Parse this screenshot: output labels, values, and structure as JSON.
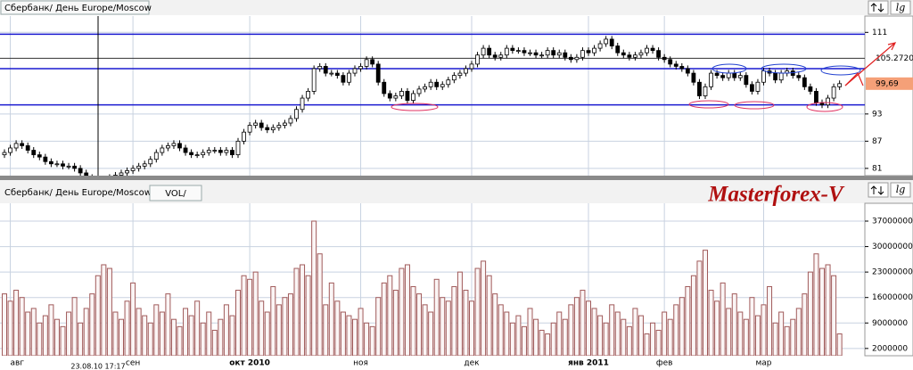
{
  "chart_data": [
    {
      "type": "candlestick",
      "title": "Сбербанк/ День Europe/Moscow",
      "scale_button": "lg",
      "up_color": "#ffffff",
      "down_color": "#000000",
      "open": [
        84,
        84.5,
        85.5,
        86.5,
        86,
        85,
        84,
        83.5,
        82.5,
        82,
        82,
        81.5,
        81.5,
        81,
        80,
        79,
        78.5,
        78,
        78.5,
        79,
        79.5,
        80,
        80.5,
        81,
        81.5,
        82,
        83,
        84.5,
        85.5,
        86,
        86.5,
        85.5,
        84.5,
        84,
        84,
        84.5,
        85,
        85,
        84.5,
        85,
        84,
        87,
        89,
        90.5,
        91,
        90,
        89.5,
        90,
        90.5,
        91,
        92,
        94,
        96.5,
        98,
        103,
        103.5,
        102,
        102,
        101.5,
        100,
        102,
        103,
        103.5,
        105,
        104,
        100,
        97.5,
        96.5,
        97,
        98,
        96,
        97.5,
        98.5,
        99,
        100,
        99,
        99.5,
        100.5,
        101.5,
        102,
        103,
        104,
        106,
        107.5,
        106,
        105.5,
        106,
        107.5,
        107,
        107,
        106.5,
        106.5,
        106,
        106,
        107,
        106,
        106.5,
        105.5,
        105,
        105.5,
        107,
        106.5,
        107.5,
        108.5,
        109.5,
        108,
        106.5,
        106,
        105.5,
        106,
        106.5,
        107.5,
        107,
        105.5,
        105,
        104,
        103.5,
        103,
        102,
        100,
        97,
        99,
        102,
        101.5,
        101,
        102,
        101,
        101.5,
        99.5,
        98,
        100,
        102.5,
        102,
        100.5,
        102,
        102.5,
        101.5,
        101,
        99,
        98,
        95.5,
        95,
        96.5,
        99
      ],
      "high": [
        85.2,
        86.2,
        87.2,
        87.2,
        86.7,
        85.7,
        84.7,
        84.2,
        83.2,
        82.7,
        82.7,
        82.2,
        82.2,
        81.7,
        80.7,
        79.7,
        79.2,
        79.2,
        79.7,
        80.2,
        80.7,
        81.2,
        81.7,
        82.2,
        82.7,
        83.7,
        85.2,
        86.2,
        86.7,
        87.2,
        87.2,
        86.2,
        85.2,
        84.7,
        85.2,
        85.7,
        85.7,
        85.7,
        85.7,
        85.7,
        87.7,
        89.7,
        91.2,
        91.7,
        91.7,
        90.7,
        90.7,
        91.2,
        91.7,
        92.7,
        94.7,
        97.2,
        98.7,
        103.7,
        104.2,
        104.2,
        102.7,
        102.7,
        102.2,
        102.7,
        103.7,
        104.2,
        105.7,
        105.7,
        104.7,
        100.7,
        98.2,
        97.7,
        98.7,
        98.7,
        98.2,
        99.2,
        99.7,
        100.7,
        100.7,
        100.2,
        101.2,
        102.2,
        102.7,
        103.7,
        104.7,
        106.7,
        108.2,
        108.2,
        106.7,
        106.7,
        108.2,
        108.2,
        107.7,
        107.7,
        107.2,
        107.2,
        106.7,
        107.7,
        107.7,
        107.2,
        107.2,
        106.2,
        106.2,
        107.7,
        107.7,
        108.2,
        109.2,
        110.2,
        110.2,
        108.7,
        107.2,
        106.7,
        106.7,
        107.2,
        108.2,
        108.2,
        107.7,
        106.2,
        105.7,
        104.7,
        104.2,
        103.7,
        102.7,
        100.7,
        99.7,
        102.7,
        102.7,
        102.2,
        102.7,
        102.7,
        102.2,
        102.2,
        100.2,
        100.7,
        103.2,
        103.2,
        102.7,
        102.7,
        103.2,
        103.2,
        102.2,
        101.7,
        99.7,
        98.7,
        96.2,
        97.2,
        99.7,
        100.4
      ],
      "low": [
        83.3,
        83.8,
        84.8,
        85.3,
        84.3,
        83.3,
        82.8,
        81.8,
        81.3,
        81.3,
        80.8,
        80.8,
        80.3,
        79.3,
        78.3,
        77.8,
        77.3,
        77.3,
        77.8,
        78.3,
        78.8,
        79.3,
        79.8,
        80.3,
        80.8,
        81.3,
        82.3,
        83.8,
        84.8,
        85.3,
        84.8,
        83.8,
        83.3,
        83.3,
        83.3,
        83.8,
        84.3,
        83.8,
        83.8,
        83.3,
        83.3,
        86.3,
        88.3,
        89.8,
        89.3,
        88.8,
        88.8,
        89.3,
        89.8,
        90.3,
        91.3,
        93.3,
        95.8,
        97.3,
        102.3,
        101.3,
        101.3,
        100.8,
        99.3,
        99.3,
        101.3,
        102.3,
        102.8,
        103.3,
        99.3,
        96.8,
        95.8,
        95.8,
        96.3,
        95.3,
        95.3,
        96.8,
        97.8,
        98.3,
        98.3,
        98.3,
        98.8,
        99.8,
        100.8,
        101.3,
        102.3,
        103.3,
        105.3,
        105.3,
        104.8,
        104.8,
        105.3,
        106.3,
        106.3,
        105.8,
        105.8,
        105.3,
        105.3,
        105.3,
        105.3,
        105.3,
        104.8,
        104.3,
        104.3,
        104.8,
        105.8,
        105.8,
        106.8,
        107.8,
        107.3,
        105.8,
        105.3,
        104.8,
        104.8,
        105.3,
        105.8,
        106.3,
        104.8,
        104.3,
        103.3,
        102.8,
        102.3,
        101.3,
        99.3,
        96.3,
        96.3,
        98.3,
        100.8,
        100.3,
        100.3,
        100.3,
        100.3,
        98.8,
        97.3,
        97.3,
        99.3,
        101.3,
        99.8,
        99.8,
        101.3,
        100.8,
        100.3,
        98.3,
        97.3,
        94.8,
        94.3,
        94.3,
        95.8,
        98.3
      ],
      "close": [
        84.5,
        85.5,
        86.5,
        86,
        85,
        84,
        83.5,
        82.5,
        82,
        82,
        81.5,
        81.5,
        81,
        80,
        79,
        78.5,
        78,
        78.5,
        79,
        79.5,
        80,
        80.5,
        81,
        81.5,
        82,
        83,
        84.5,
        85.5,
        86,
        86.5,
        85.5,
        84.5,
        84,
        84,
        84.5,
        85,
        85,
        84.5,
        85,
        84,
        87,
        89,
        90.5,
        91,
        90,
        89.5,
        90,
        90.5,
        91,
        92,
        94,
        96.5,
        98,
        103,
        103.5,
        102,
        102,
        101.5,
        100,
        102,
        103,
        103.5,
        105,
        104,
        100,
        97.5,
        96.5,
        97,
        98,
        96,
        97.5,
        98.5,
        99,
        100,
        99,
        99.5,
        100.5,
        101.5,
        102,
        103,
        104,
        106,
        107.5,
        106,
        105.5,
        106,
        107.5,
        107,
        107,
        106.5,
        106.5,
        106,
        106,
        107,
        106,
        106.5,
        105.5,
        105,
        105.5,
        107,
        106.5,
        107.5,
        108.5,
        109.5,
        108,
        106.5,
        106,
        105.5,
        106,
        106.5,
        107.5,
        107,
        105.5,
        105,
        104,
        103.5,
        103,
        102,
        100,
        97,
        99,
        102,
        101.5,
        101,
        102,
        101,
        101.5,
        99.5,
        98,
        100,
        102.5,
        102,
        100.5,
        102,
        102.5,
        101.5,
        101,
        99,
        98,
        95.5,
        95,
        96.5,
        99,
        99.69
      ],
      "ylim": [
        79.4,
        114.6
      ],
      "yticks": [
        81,
        87,
        93,
        111
      ],
      "levels": [
        110.6,
        103,
        95
      ],
      "level_color": "#1a1ad0",
      "markers": [
        {
          "value": 105.272,
          "label": "105.2720"
        },
        {
          "value": 99.69,
          "label": "99,69"
        }
      ],
      "last_price_color": "#f5a078",
      "grid": true
    },
    {
      "type": "bar",
      "title": "Сбербанк/ День Europe/Moscow",
      "indicator": "VOL/",
      "watermark": "Masterforex-V",
      "cursor_label": "23.08.10 17:17",
      "color": "#a05a5a",
      "categories": [
        null,
        "авг",
        null,
        null,
        null,
        null,
        null,
        null,
        null,
        null,
        null,
        null,
        null,
        null,
        null,
        null,
        null,
        null,
        null,
        null,
        null,
        null,
        "сен",
        null,
        null,
        null,
        null,
        null,
        null,
        null,
        null,
        null,
        null,
        null,
        null,
        null,
        null,
        null,
        null,
        null,
        null,
        null,
        "окт 2010",
        null,
        null,
        null,
        null,
        null,
        null,
        null,
        null,
        null,
        null,
        null,
        null,
        null,
        null,
        null,
        null,
        null,
        null,
        "ноя",
        null,
        null,
        null,
        null,
        null,
        null,
        null,
        null,
        null,
        null,
        null,
        null,
        null,
        null,
        null,
        null,
        null,
        null,
        "дек",
        null,
        null,
        null,
        null,
        null,
        null,
        null,
        null,
        null,
        null,
        null,
        null,
        null,
        null,
        null,
        null,
        null,
        null,
        null,
        "янв 2011",
        null,
        null,
        null,
        null,
        null,
        null,
        null,
        null,
        null,
        null,
        null,
        null,
        "фев",
        null,
        null,
        null,
        null,
        null,
        null,
        null,
        null,
        null,
        null,
        null,
        null,
        null,
        null,
        null,
        null,
        "мар",
        null,
        null,
        null,
        null,
        null,
        null,
        null,
        null,
        null,
        null,
        null,
        null,
        null
      ],
      "values": [
        17000000,
        15000000,
        18000000,
        16000000,
        12000000,
        13000000,
        9000000,
        11000000,
        14000000,
        10000000,
        8000000,
        12000000,
        16000000,
        9000000,
        13000000,
        17000000,
        22000000,
        25000000,
        24000000,
        12000000,
        10000000,
        15000000,
        20000000,
        13000000,
        11000000,
        9000000,
        14000000,
        12000000,
        17000000,
        10000000,
        8000000,
        13000000,
        11000000,
        15000000,
        9000000,
        12000000,
        7000000,
        10000000,
        14000000,
        11000000,
        18000000,
        22000000,
        21000000,
        23000000,
        15000000,
        12000000,
        19000000,
        14000000,
        16000000,
        17000000,
        24000000,
        25000000,
        22000000,
        37000000,
        28000000,
        14000000,
        20000000,
        15000000,
        12000000,
        11000000,
        10000000,
        13000000,
        9000000,
        8000000,
        16000000,
        20000000,
        22000000,
        18000000,
        24000000,
        25000000,
        19000000,
        17000000,
        14000000,
        12000000,
        21000000,
        16000000,
        15000000,
        19000000,
        23000000,
        18000000,
        15000000,
        24000000,
        26000000,
        22000000,
        17000000,
        14000000,
        12000000,
        9000000,
        11000000,
        8000000,
        13000000,
        10000000,
        7000000,
        6000000,
        9000000,
        12000000,
        10000000,
        14000000,
        16000000,
        18000000,
        15000000,
        13000000,
        11000000,
        9000000,
        14000000,
        12000000,
        10000000,
        8000000,
        13000000,
        11000000,
        6000000,
        9000000,
        7000000,
        12000000,
        10000000,
        14000000,
        16000000,
        19000000,
        22000000,
        26000000,
        29000000,
        18000000,
        15000000,
        20000000,
        13000000,
        17000000,
        12000000,
        10000000,
        16000000,
        11000000,
        14000000,
        19000000,
        9000000,
        12000000,
        8000000,
        10000000,
        13000000,
        17000000,
        23000000,
        28000000,
        24000000,
        25000000,
        22000000,
        6000000
      ],
      "ylim": [
        0,
        41900000
      ],
      "yticks": [
        2000000,
        9000000,
        16000000,
        23000000,
        30000000,
        37000000
      ],
      "grid": true
    }
  ]
}
